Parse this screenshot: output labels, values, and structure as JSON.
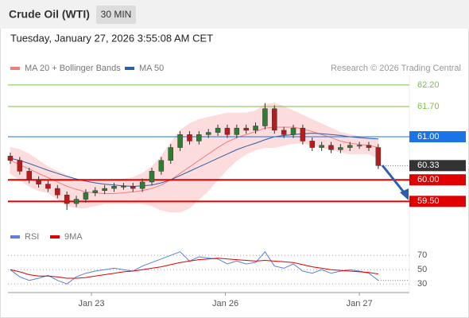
{
  "header": {
    "title": "Crude Oil (WTI)",
    "interval": "30 MIN",
    "date": "Tuesday, January 27, 2026 3:55:08 AM CET",
    "credit": "Research © 2026 Trading Central"
  },
  "chart_data": [
    {
      "type": "candlestick",
      "candles": {
        "open": [
          60.55,
          60.45,
          60.2,
          60.0,
          59.9,
          59.8,
          59.65,
          59.45,
          59.55,
          59.7,
          59.75,
          59.8,
          59.85,
          59.85,
          59.8,
          59.95,
          60.2,
          60.45,
          60.75,
          61.05,
          60.9,
          61.05,
          61.1,
          61.2,
          61.05,
          61.2,
          61.15,
          61.25,
          61.65,
          61.15,
          61.05,
          61.2,
          60.9,
          60.75,
          60.8,
          60.7,
          60.75,
          60.8,
          60.8,
          60.75
        ],
        "high": [
          60.63,
          60.53,
          60.28,
          60.08,
          59.98,
          59.88,
          59.73,
          59.63,
          59.78,
          59.83,
          59.88,
          59.93,
          59.93,
          59.93,
          60.03,
          60.28,
          60.53,
          60.83,
          61.13,
          61.13,
          61.13,
          61.18,
          61.28,
          61.28,
          61.28,
          61.28,
          61.33,
          61.78,
          61.73,
          61.23,
          61.28,
          61.28,
          60.98,
          60.88,
          60.88,
          60.83,
          60.88,
          60.88,
          60.88,
          60.83
        ],
        "low": [
          60.37,
          60.12,
          59.92,
          59.82,
          59.72,
          59.57,
          59.3,
          59.37,
          59.47,
          59.62,
          59.67,
          59.72,
          59.77,
          59.72,
          59.72,
          59.87,
          60.12,
          60.37,
          60.67,
          60.82,
          60.82,
          60.97,
          61.02,
          60.97,
          60.97,
          61.07,
          61.07,
          61.17,
          61.07,
          60.97,
          60.97,
          60.82,
          60.67,
          60.67,
          60.62,
          60.62,
          60.67,
          60.72,
          60.67,
          60.25
        ],
        "close": [
          60.45,
          60.2,
          60.0,
          59.9,
          59.8,
          59.65,
          59.45,
          59.55,
          59.7,
          59.75,
          59.8,
          59.85,
          59.85,
          59.8,
          59.95,
          60.2,
          60.45,
          60.75,
          61.05,
          60.9,
          61.05,
          61.1,
          61.2,
          61.05,
          61.2,
          61.15,
          61.25,
          61.65,
          61.15,
          61.05,
          61.2,
          60.9,
          60.75,
          60.8,
          60.7,
          60.75,
          60.8,
          60.8,
          60.75,
          60.33
        ],
        "up_color": "#2e7d32",
        "down_color": "#b71c1c"
      },
      "series": [
        {
          "name": "MA 20 + Bollinger Bands",
          "color": "#f08080",
          "band_color": "#fcdcdc",
          "values": [
            60.45,
            60.35,
            60.25,
            60.15,
            60.05,
            59.95,
            59.85,
            59.78,
            59.72,
            59.7,
            59.68,
            59.68,
            59.7,
            59.72,
            59.75,
            59.8,
            59.88,
            60.0,
            60.15,
            60.3,
            60.45,
            60.6,
            60.75,
            60.88,
            60.98,
            61.05,
            61.12,
            61.2,
            61.22,
            61.22,
            61.22,
            61.18,
            61.12,
            61.05,
            60.98,
            60.9,
            60.85,
            60.82,
            60.8,
            60.75
          ],
          "upper": [
            60.75,
            60.7,
            60.6,
            60.45,
            60.3,
            60.2,
            60.1,
            60.02,
            59.98,
            59.98,
            59.98,
            60.0,
            60.02,
            60.05,
            60.15,
            60.3,
            60.55,
            60.85,
            61.15,
            61.3,
            61.4,
            61.45,
            61.5,
            61.55,
            61.55,
            61.55,
            61.6,
            61.75,
            61.78,
            61.7,
            61.6,
            61.5,
            61.4,
            61.3,
            61.2,
            61.1,
            61.05,
            61.0,
            60.98,
            60.95
          ],
          "lower": [
            60.15,
            60.0,
            59.85,
            59.75,
            59.7,
            59.55,
            59.4,
            59.35,
            59.35,
            59.4,
            59.45,
            59.45,
            59.45,
            59.45,
            59.45,
            59.4,
            59.3,
            59.25,
            59.25,
            59.35,
            59.55,
            59.75,
            60.0,
            60.25,
            60.45,
            60.6,
            60.7,
            60.75,
            60.75,
            60.8,
            60.85,
            60.85,
            60.8,
            60.75,
            60.7,
            60.65,
            60.6,
            60.6,
            60.6,
            60.5
          ]
        },
        {
          "name": "MA 50",
          "color": "#2f5ea8",
          "values": [
            60.5,
            60.45,
            60.38,
            60.3,
            60.22,
            60.15,
            60.08,
            60.02,
            59.97,
            59.93,
            59.9,
            59.88,
            59.86,
            59.85,
            59.86,
            59.88,
            59.93,
            60.0,
            60.1,
            60.2,
            60.3,
            60.4,
            60.5,
            60.6,
            60.7,
            60.78,
            60.85,
            60.93,
            61.0,
            61.03,
            61.05,
            61.07,
            61.08,
            61.07,
            61.05,
            61.03,
            61.0,
            60.98,
            60.96,
            60.95
          ]
        }
      ],
      "levels": [
        {
          "value": 62.2,
          "label": "62.20",
          "color": "#7cc14a",
          "boxed": false,
          "line": "solid"
        },
        {
          "value": 61.7,
          "label": "61.70",
          "color": "#7cc14a",
          "boxed": false,
          "line": "solid"
        },
        {
          "value": 61.0,
          "label": "61.00",
          "color": "#1a73e8",
          "boxed": true,
          "line": "solid"
        },
        {
          "value": 60.33,
          "label": "60.33",
          "color": "#333333",
          "boxed": true,
          "line": "dotted"
        },
        {
          "value": 60.0,
          "label": "60.00",
          "color": "#e00000",
          "boxed": true,
          "line": "solid"
        },
        {
          "value": 59.5,
          "label": "59.50",
          "color": "#e00000",
          "boxed": true,
          "line": "solid"
        }
      ],
      "xlim": [
        -0.25,
        42.3
      ],
      "ylim": [
        59.1,
        62.42
      ]
    },
    {
      "type": "line",
      "series": [
        {
          "name": "RSI",
          "color": "#5b7fd6",
          "values": [
            50,
            40,
            35,
            38,
            42,
            35,
            30,
            40,
            45,
            48,
            50,
            52,
            50,
            48,
            55,
            60,
            65,
            70,
            75,
            62,
            68,
            66,
            65,
            58,
            62,
            58,
            60,
            75,
            55,
            52,
            58,
            48,
            45,
            50,
            45,
            48,
            50,
            48,
            45,
            35
          ]
        },
        {
          "name": "9MA",
          "color": "#e00000",
          "values": [
            50,
            47,
            43,
            41,
            41,
            40,
            38,
            38,
            39,
            41,
            43,
            45,
            47,
            48,
            50,
            52,
            54,
            57,
            60,
            62,
            64,
            65,
            66,
            65,
            64,
            63,
            62,
            63,
            62,
            61,
            60,
            57,
            54,
            52,
            50,
            49,
            48,
            47,
            46,
            44
          ]
        }
      ],
      "xlim": [
        -0.25,
        42.3
      ],
      "ylim": [
        18,
        88
      ],
      "yticks": [
        70,
        50,
        30
      ],
      "xticks": [
        {
          "value": 8.6,
          "label": "Jan 23"
        },
        {
          "value": 22.8,
          "label": "Jan 26"
        },
        {
          "value": 37.0,
          "label": "Jan 27"
        }
      ]
    }
  ]
}
